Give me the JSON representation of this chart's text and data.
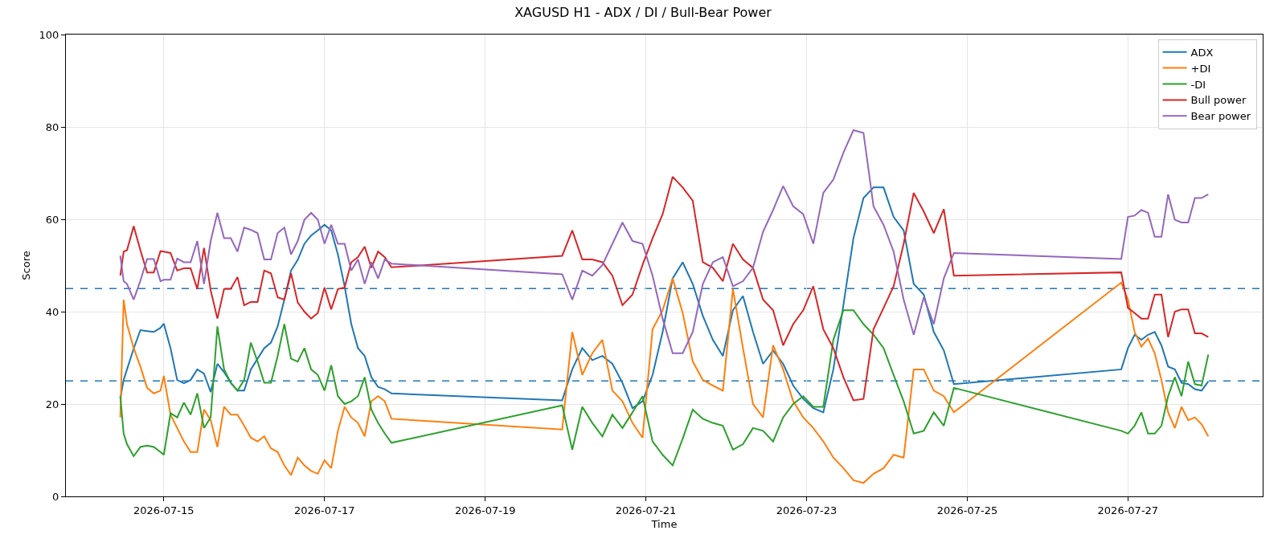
{
  "chart_data": {
    "type": "line",
    "title": "XAGUSD H1 - ADX / DI / Bull-Bear Power",
    "xlabel": "Time",
    "ylabel": "Score",
    "x": [
      "2026-07-14T11:00",
      "2026-07-14T12:00",
      "2026-07-14T13:00",
      "2026-07-14T15:00",
      "2026-07-14T17:00",
      "2026-07-14T19:00",
      "2026-07-14T21:00",
      "2026-07-14T23:00",
      "2026-07-15T00:00",
      "2026-07-15T02:00",
      "2026-07-15T04:00",
      "2026-07-15T06:00",
      "2026-07-15T08:00",
      "2026-07-15T10:00",
      "2026-07-15T12:00",
      "2026-07-15T14:00",
      "2026-07-15T16:00",
      "2026-07-15T18:00",
      "2026-07-15T20:00",
      "2026-07-15T22:00",
      "2026-07-16T00:00",
      "2026-07-16T02:00",
      "2026-07-16T04:00",
      "2026-07-16T06:00",
      "2026-07-16T08:00",
      "2026-07-16T10:00",
      "2026-07-16T12:00",
      "2026-07-16T14:00",
      "2026-07-16T16:00",
      "2026-07-16T18:00",
      "2026-07-16T20:00",
      "2026-07-16T22:00",
      "2026-07-17T00:00",
      "2026-07-17T02:00",
      "2026-07-17T04:00",
      "2026-07-17T06:00",
      "2026-07-17T08:00",
      "2026-07-17T10:00",
      "2026-07-17T12:00",
      "2026-07-17T14:00",
      "2026-07-17T16:00",
      "2026-07-17T18:00",
      "2026-07-17T20:00",
      "2026-07-19T23:00",
      "2026-07-20T02:00",
      "2026-07-20T05:00",
      "2026-07-20T08:00",
      "2026-07-20T11:00",
      "2026-07-20T14:00",
      "2026-07-20T17:00",
      "2026-07-20T20:00",
      "2026-07-20T23:00",
      "2026-07-21T02:00",
      "2026-07-21T05:00",
      "2026-07-21T08:00",
      "2026-07-21T11:00",
      "2026-07-21T14:00",
      "2026-07-21T17:00",
      "2026-07-21T20:00",
      "2026-07-21T23:00",
      "2026-07-22T02:00",
      "2026-07-22T05:00",
      "2026-07-22T08:00",
      "2026-07-22T11:00",
      "2026-07-22T14:00",
      "2026-07-22T17:00",
      "2026-07-22T20:00",
      "2026-07-22T23:00",
      "2026-07-23T02:00",
      "2026-07-23T05:00",
      "2026-07-23T08:00",
      "2026-07-23T11:00",
      "2026-07-23T14:00",
      "2026-07-23T17:00",
      "2026-07-23T20:00",
      "2026-07-23T23:00",
      "2026-07-24T02:00",
      "2026-07-24T05:00",
      "2026-07-24T08:00",
      "2026-07-24T11:00",
      "2026-07-24T14:00",
      "2026-07-24T17:00",
      "2026-07-24T20:00",
      "2026-07-26T22:00",
      "2026-07-27T00:00",
      "2026-07-27T02:00",
      "2026-07-27T04:00",
      "2026-07-27T06:00",
      "2026-07-27T08:00",
      "2026-07-27T10:00",
      "2026-07-27T12:00",
      "2026-07-27T14:00",
      "2026-07-27T16:00",
      "2026-07-27T18:00",
      "2026-07-27T20:00",
      "2026-07-27T22:00",
      "2026-07-28T00:00"
    ],
    "series": [
      {
        "name": "ADX",
        "color": "#1f77b4",
        "values": [
          21.2,
          25.2,
          27.5,
          32,
          36,
          35.8,
          35.6,
          36.5,
          37.4,
          32.1,
          25.2,
          24.5,
          25.2,
          27.5,
          26.6,
          22.6,
          28.7,
          26.9,
          24.6,
          22.9,
          22.9,
          27.5,
          29.8,
          32.1,
          33.3,
          36.8,
          42.6,
          48.9,
          51.2,
          54.7,
          56.5,
          57.6,
          58.8,
          57.6,
          52.4,
          45.5,
          37.3,
          32.1,
          30.4,
          25.8,
          23.7,
          23.2,
          22.3,
          20.8,
          27.5,
          32.1,
          29.5,
          30.4,
          28.7,
          24.6,
          19.1,
          20.6,
          26.3,
          35.6,
          47.2,
          50.7,
          46,
          39.1,
          33.9,
          30.4,
          40.3,
          43.4,
          35.6,
          28.7,
          31.6,
          28.7,
          24,
          21.1,
          19.1,
          18.2,
          27.5,
          41.4,
          55.9,
          64.6,
          66.9,
          66.9,
          60.5,
          57.6,
          46,
          43.7,
          35.6,
          31.6,
          24.3,
          27.5,
          32.1,
          35,
          33.9,
          35,
          35.6,
          32.7,
          28.1,
          27.5,
          24.6,
          24.3,
          23.2,
          22.9,
          24.9
        ]
      },
      {
        "name": "+DI",
        "color": "#ff7f0e",
        "values": [
          17.1,
          42.6,
          37.3,
          32.1,
          28.1,
          23.5,
          22.3,
          22.9,
          26.1,
          17.7,
          14.8,
          11.9,
          9.6,
          9.6,
          18.8,
          16.5,
          10.7,
          19.4,
          17.7,
          17.7,
          15.3,
          12.7,
          11.9,
          13,
          10.4,
          9.6,
          6.7,
          4.6,
          8.4,
          6.7,
          5.5,
          4.9,
          7.8,
          6.1,
          14.2,
          19.4,
          17.1,
          15.9,
          13,
          20.6,
          21.7,
          20.6,
          16.8,
          14.5,
          35.6,
          26.3,
          31,
          33.9,
          22.9,
          20.6,
          15.9,
          12.7,
          36.2,
          40.3,
          47.2,
          39.7,
          29.2,
          25.2,
          24,
          22.9,
          44.9,
          32.1,
          20,
          17.1,
          32.7,
          27.5,
          20.6,
          17.1,
          14.8,
          11.9,
          8.4,
          6.1,
          3.5,
          2.9,
          4.9,
          6.1,
          9,
          8.4,
          27.5,
          27.5,
          22.9,
          21.7,
          18.2,
          46.3,
          42.6,
          35.6,
          32.4,
          34.2,
          31,
          25.2,
          18.2,
          14.8,
          19.4,
          16.5,
          17.1,
          15.6,
          13
        ]
      },
      {
        "name": "-DI",
        "color": "#2ca02c",
        "values": [
          21.7,
          13.6,
          11.3,
          8.7,
          10.7,
          11,
          10.7,
          9.6,
          9,
          18,
          17.1,
          20.3,
          17.7,
          22.3,
          14.8,
          17.1,
          36.8,
          27.5,
          24.6,
          22.9,
          25.2,
          33.3,
          29.2,
          24.6,
          24.6,
          30.4,
          37.3,
          29.8,
          29.2,
          32.1,
          27.5,
          26.3,
          22.9,
          28.4,
          21.7,
          20,
          20.6,
          21.7,
          25.8,
          18.8,
          15.9,
          13.6,
          11.6,
          19.7,
          10.1,
          19.4,
          15.9,
          13,
          17.7,
          14.8,
          18.2,
          21.7,
          11.9,
          9,
          6.7,
          12.5,
          18.8,
          16.8,
          15.9,
          15.3,
          10.1,
          11.3,
          14.8,
          14.2,
          11.9,
          17.1,
          20,
          21.7,
          19.4,
          19.4,
          33.9,
          40.3,
          40.3,
          37.3,
          35,
          32.1,
          26.3,
          20.6,
          13.6,
          14.2,
          18.2,
          15.3,
          23.5,
          14.2,
          13.6,
          15.3,
          18.2,
          13.6,
          13.6,
          15.3,
          21.7,
          25.8,
          21.7,
          29.2,
          24.3,
          24,
          30.7
        ]
      },
      {
        "name": "Bull power",
        "color": "#d62728",
        "values": [
          47.8,
          53,
          53.3,
          58.5,
          53.3,
          48.5,
          48.5,
          53.1,
          53,
          52.7,
          48.9,
          49.4,
          49.4,
          44.9,
          53.8,
          44.6,
          38.5,
          44.9,
          44.9,
          47.5,
          41.4,
          42.1,
          42.1,
          48.9,
          48.3,
          43.1,
          42.6,
          48.3,
          42,
          40,
          38.5,
          39.7,
          45.2,
          40.5,
          44.9,
          45.2,
          50.7,
          51.8,
          54.1,
          49.5,
          53,
          51.8,
          49.6,
          52.1,
          57.6,
          51.3,
          51.3,
          50.7,
          47.8,
          41.4,
          43.7,
          50.1,
          55.9,
          61.1,
          69.2,
          66.9,
          64,
          50.7,
          49.5,
          46.6,
          54.7,
          51.3,
          49.5,
          42.6,
          40.3,
          32.7,
          37.3,
          40.3,
          45.5,
          36.2,
          32.1,
          25.8,
          20.8,
          21.1,
          36.2,
          40.8,
          45.5,
          54.7,
          65.7,
          61.7,
          57,
          62.2,
          47.8,
          48.5,
          40.8,
          39.7,
          38.5,
          38.5,
          43.7,
          43.7,
          34.5,
          40,
          40.5,
          40.5,
          35.3,
          35.3,
          34.5
        ]
      },
      {
        "name": "Bear power",
        "color": "#9467bd",
        "values": [
          52.1,
          46.6,
          46,
          42.6,
          46.7,
          51.4,
          51.4,
          46.6,
          46.9,
          46.9,
          51.5,
          50.7,
          50.7,
          55.3,
          46,
          55.3,
          61.4,
          55.9,
          55.9,
          53,
          58.2,
          57.7,
          57,
          51.3,
          51.3,
          57,
          58.2,
          52.4,
          55.3,
          59.9,
          61.4,
          59.9,
          54.7,
          58.8,
          54.7,
          54.7,
          48.9,
          51.3,
          46,
          50.7,
          47.2,
          51.3,
          50.4,
          48.1,
          42.6,
          48.9,
          47.8,
          50.1,
          54.7,
          59.3,
          55.3,
          54.7,
          47.8,
          38.5,
          31,
          31,
          35.6,
          46,
          50.7,
          51.8,
          45.5,
          46.6,
          49.5,
          57.3,
          62,
          67.2,
          62.8,
          61.1,
          54.7,
          65.7,
          68.6,
          74.4,
          79.3,
          78.7,
          62.8,
          58.8,
          53,
          42.6,
          35,
          43.1,
          37.3,
          47.2,
          52.7,
          51.4,
          60.5,
          60.8,
          62,
          61.4,
          56.2,
          56.2,
          65.4,
          59.9,
          59.3,
          59.3,
          64.6,
          64.6,
          65.4
        ]
      }
    ],
    "xlim": [
      "2026-07-13T18:45",
      "2026-07-28T16:15"
    ],
    "xticks": [
      "2026-07-15",
      "2026-07-17",
      "2026-07-19",
      "2026-07-21",
      "2026-07-23",
      "2026-07-25",
      "2026-07-27"
    ],
    "ylim": [
      0,
      100
    ],
    "yticks": [
      0,
      20,
      40,
      60,
      80,
      100
    ],
    "ref_lines": [
      {
        "axis": "y",
        "value": 45,
        "color": "#1f77b4",
        "line_style": "dashed"
      },
      {
        "axis": "y",
        "value": 25,
        "color": "#1f77b4",
        "line_style": "dashed"
      }
    ],
    "grid": true,
    "legend": "top right",
    "line_style": "solid",
    "marker": "none"
  }
}
